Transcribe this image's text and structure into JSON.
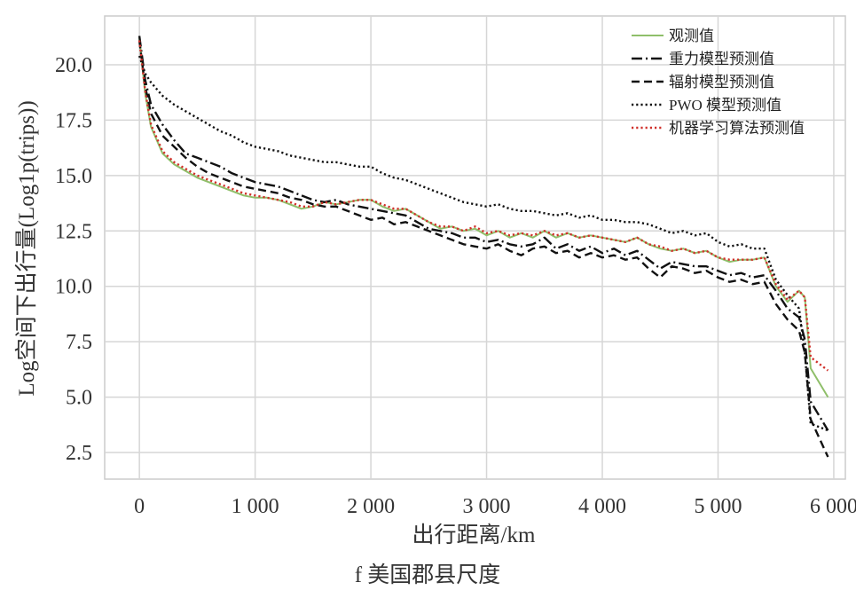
{
  "chart_data": {
    "type": "line",
    "caption": "f 美国郡县尺度",
    "xlabel": "出行距离/km",
    "ylabel": "Log空间下出行量(Log1p(trips))",
    "xlim": [
      -300,
      6100
    ],
    "ylim": [
      1.3,
      22.2
    ],
    "x_ticks": [
      0,
      1000,
      2000,
      3000,
      4000,
      5000,
      6000
    ],
    "x_tick_labels": [
      "0",
      "1 000",
      "2 000",
      "3 000",
      "4 000",
      "5 000",
      "6 000"
    ],
    "y_ticks": [
      2.5,
      5.0,
      7.5,
      10.0,
      12.5,
      15.0,
      17.5,
      20.0
    ],
    "y_tick_labels": [
      "2.5",
      "5.0",
      "7.5",
      "10.0",
      "12.5",
      "15.0",
      "17.5",
      "20.0"
    ],
    "grid": true,
    "legend_position": "top-right",
    "series": [
      {
        "name": "观测值",
        "color": "#8fbf6a",
        "dash": "solid",
        "x": [
          0,
          50,
          100,
          200,
          300,
          400,
          500,
          600,
          700,
          800,
          900,
          1000,
          1100,
          1200,
          1300,
          1400,
          1500,
          1600,
          1700,
          1800,
          1900,
          2000,
          2100,
          2200,
          2300,
          2400,
          2500,
          2600,
          2700,
          2800,
          2900,
          3000,
          3100,
          3200,
          3300,
          3400,
          3500,
          3600,
          3700,
          3800,
          3900,
          4000,
          4100,
          4200,
          4300,
          4400,
          4500,
          4600,
          4700,
          4800,
          4900,
          5000,
          5100,
          5200,
          5300,
          5400,
          5500,
          5600,
          5700,
          5750,
          5800,
          5950
        ],
        "y": [
          21.2,
          18.7,
          17.2,
          16.0,
          15.5,
          15.2,
          14.9,
          14.7,
          14.5,
          14.3,
          14.1,
          14.0,
          14.0,
          13.9,
          13.7,
          13.5,
          13.6,
          13.8,
          13.7,
          13.8,
          13.9,
          13.9,
          13.6,
          13.4,
          13.5,
          13.2,
          12.9,
          12.6,
          12.7,
          12.5,
          12.6,
          12.3,
          12.5,
          12.2,
          12.4,
          12.2,
          12.5,
          12.2,
          12.4,
          12.2,
          12.3,
          12.2,
          12.1,
          12.0,
          12.2,
          11.9,
          11.7,
          11.6,
          11.7,
          11.5,
          11.6,
          11.3,
          11.1,
          11.2,
          11.2,
          11.3,
          10.0,
          9.3,
          9.8,
          9.5,
          6.3,
          5.0
        ]
      },
      {
        "name": "重力模型预测值",
        "color": "#111111",
        "dash": "dashdot",
        "x": [
          0,
          50,
          100,
          200,
          300,
          400,
          500,
          600,
          700,
          800,
          900,
          1000,
          1100,
          1200,
          1300,
          1400,
          1500,
          1600,
          1700,
          1800,
          1900,
          2000,
          2100,
          2200,
          2300,
          2400,
          2500,
          2600,
          2700,
          2800,
          2900,
          3000,
          3100,
          3200,
          3300,
          3400,
          3500,
          3600,
          3700,
          3800,
          3900,
          4000,
          4100,
          4200,
          4300,
          4400,
          4500,
          4600,
          4700,
          4800,
          4900,
          5000,
          5100,
          5200,
          5300,
          5400,
          5500,
          5600,
          5700,
          5750,
          5800,
          5950
        ],
        "y": [
          21.3,
          19.3,
          18.2,
          17.3,
          16.6,
          16.0,
          15.8,
          15.6,
          15.4,
          15.1,
          14.9,
          14.7,
          14.6,
          14.5,
          14.3,
          14.1,
          13.9,
          13.8,
          13.9,
          13.7,
          13.6,
          13.5,
          13.4,
          13.3,
          13.2,
          12.9,
          12.6,
          12.5,
          12.4,
          12.2,
          12.2,
          12.0,
          12.1,
          11.9,
          11.8,
          11.9,
          12.2,
          11.7,
          11.9,
          11.6,
          11.8,
          11.5,
          11.7,
          11.4,
          11.6,
          11.2,
          10.8,
          11.1,
          11.0,
          10.9,
          10.9,
          10.7,
          10.5,
          10.6,
          10.4,
          10.5,
          9.8,
          9.0,
          8.6,
          7.6,
          4.8,
          3.5
        ]
      },
      {
        "name": "辐射模型预测值",
        "color": "#111111",
        "dash": "dashed",
        "x": [
          0,
          50,
          100,
          200,
          300,
          400,
          500,
          600,
          700,
          800,
          900,
          1000,
          1100,
          1200,
          1300,
          1400,
          1500,
          1600,
          1700,
          1800,
          1900,
          2000,
          2100,
          2200,
          2300,
          2400,
          2500,
          2600,
          2700,
          2800,
          2900,
          3000,
          3100,
          3200,
          3300,
          3400,
          3500,
          3600,
          3700,
          3800,
          3900,
          4000,
          4100,
          4200,
          4300,
          4400,
          4500,
          4600,
          4700,
          4800,
          4900,
          5000,
          5100,
          5200,
          5300,
          5400,
          5500,
          5600,
          5700,
          5750,
          5800,
          5950
        ],
        "y": [
          21.1,
          19.0,
          17.8,
          16.8,
          16.3,
          15.8,
          15.4,
          15.1,
          14.9,
          14.7,
          14.5,
          14.4,
          14.3,
          14.2,
          14.0,
          13.9,
          13.7,
          13.6,
          13.6,
          13.4,
          13.2,
          13.0,
          13.1,
          12.8,
          12.9,
          12.7,
          12.5,
          12.3,
          12.1,
          11.9,
          11.8,
          11.7,
          11.9,
          11.6,
          11.4,
          11.7,
          11.8,
          11.5,
          11.6,
          11.3,
          11.5,
          11.3,
          11.4,
          11.2,
          11.3,
          10.8,
          10.4,
          10.9,
          10.8,
          10.6,
          10.7,
          10.4,
          10.2,
          10.3,
          10.1,
          10.2,
          9.2,
          8.5,
          8.0,
          7.0,
          4.0,
          2.3
        ]
      },
      {
        "name": "PWO 模型预测值",
        "color": "#111111",
        "dash": "dotted",
        "x": [
          0,
          50,
          100,
          200,
          300,
          400,
          500,
          600,
          700,
          800,
          900,
          1000,
          1100,
          1200,
          1300,
          1400,
          1500,
          1600,
          1700,
          1800,
          1900,
          2000,
          2100,
          2200,
          2300,
          2400,
          2500,
          2600,
          2700,
          2800,
          2900,
          3000,
          3100,
          3200,
          3300,
          3400,
          3500,
          3600,
          3700,
          3800,
          3900,
          4000,
          4100,
          4200,
          4300,
          4400,
          4500,
          4600,
          4700,
          4800,
          4900,
          5000,
          5100,
          5200,
          5300,
          5400,
          5500,
          5600,
          5700,
          5750,
          5800,
          5950
        ],
        "y": [
          20.4,
          19.6,
          19.2,
          18.6,
          18.2,
          17.9,
          17.6,
          17.3,
          17.0,
          16.8,
          16.5,
          16.3,
          16.2,
          16.1,
          15.9,
          15.8,
          15.7,
          15.6,
          15.6,
          15.5,
          15.4,
          15.4,
          15.1,
          14.9,
          14.8,
          14.6,
          14.4,
          14.2,
          14.0,
          13.8,
          13.7,
          13.6,
          13.7,
          13.5,
          13.4,
          13.4,
          13.3,
          13.2,
          13.3,
          13.1,
          13.2,
          13.0,
          13.0,
          12.9,
          12.9,
          12.8,
          12.6,
          12.4,
          12.5,
          12.3,
          12.4,
          12.0,
          11.8,
          11.9,
          11.7,
          11.7,
          10.3,
          9.6,
          9.0,
          7.0,
          3.8,
          3.5
        ]
      },
      {
        "name": "机器学习算法预测值",
        "color": "#d0302a",
        "dash": "dotted",
        "x": [
          0,
          50,
          100,
          200,
          300,
          400,
          500,
          600,
          700,
          800,
          900,
          1000,
          1100,
          1200,
          1300,
          1400,
          1500,
          1600,
          1700,
          1800,
          1900,
          2000,
          2100,
          2200,
          2300,
          2400,
          2500,
          2600,
          2700,
          2800,
          2900,
          3000,
          3100,
          3200,
          3300,
          3400,
          3500,
          3600,
          3700,
          3800,
          3900,
          4000,
          4100,
          4200,
          4300,
          4400,
          4500,
          4600,
          4700,
          4800,
          4900,
          5000,
          5100,
          5200,
          5300,
          5400,
          5500,
          5600,
          5700,
          5750,
          5800,
          5950
        ],
        "y": [
          21.1,
          18.8,
          17.3,
          16.1,
          15.6,
          15.3,
          15.0,
          14.8,
          14.6,
          14.4,
          14.2,
          14.1,
          14.0,
          13.9,
          13.8,
          13.6,
          13.6,
          13.8,
          13.7,
          13.8,
          13.9,
          13.9,
          13.7,
          13.5,
          13.5,
          13.2,
          12.9,
          12.7,
          12.7,
          12.5,
          12.7,
          12.4,
          12.5,
          12.3,
          12.4,
          12.3,
          12.5,
          12.3,
          12.4,
          12.2,
          12.3,
          12.2,
          12.1,
          12.0,
          12.2,
          11.9,
          11.8,
          11.6,
          11.7,
          11.5,
          11.6,
          11.3,
          11.2,
          11.2,
          11.2,
          11.3,
          10.1,
          9.4,
          9.8,
          9.5,
          6.8,
          6.2
        ]
      }
    ]
  }
}
